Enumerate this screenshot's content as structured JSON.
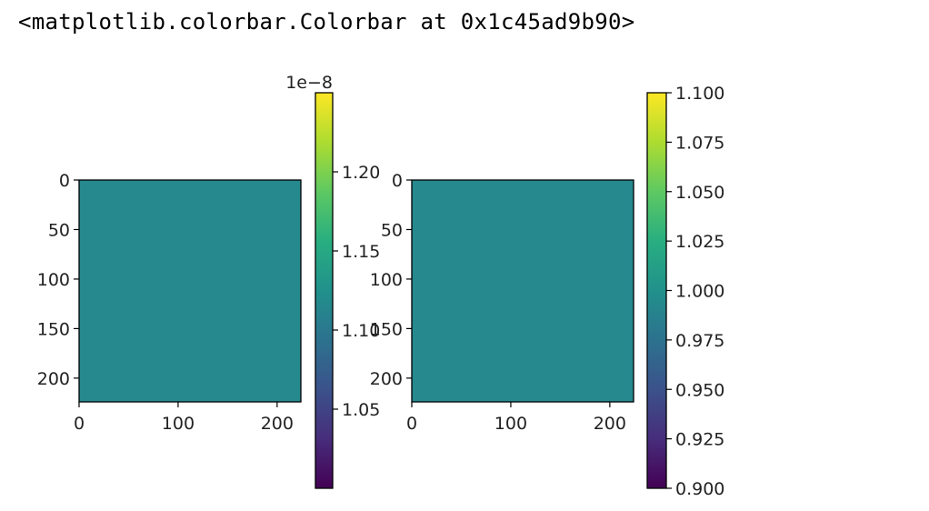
{
  "output": {
    "repr_text": "<matplotlib.colorbar.Colorbar at 0x1c45ad9b90>"
  },
  "colors": {
    "image_fill": "#26898e",
    "axis": "#000000",
    "viridis": [
      "#440154",
      "#472d7b",
      "#3b528b",
      "#2c728e",
      "#21918c",
      "#28ae80",
      "#5ec962",
      "#addc30",
      "#fde725"
    ]
  },
  "chart_data": [
    {
      "type": "heatmap",
      "title": "",
      "xlabel": "",
      "ylabel": "",
      "xlim": [
        0,
        224
      ],
      "ylim": [
        224,
        0
      ],
      "x_ticks": [
        0,
        100,
        200
      ],
      "x_tick_labels": [
        "0",
        "100",
        "200"
      ],
      "y_ticks": [
        0,
        50,
        100,
        150,
        200
      ],
      "y_tick_labels": [
        "0",
        "50",
        "100",
        "150",
        "200"
      ],
      "image_shape": [
        224,
        224
      ],
      "image_value": "constant (uniform colour)",
      "colorbar": {
        "range": [
          1.0,
          1.25
        ],
        "offset_label": "1e−8",
        "ticks": [
          1.05,
          1.1,
          1.15,
          1.2
        ],
        "tick_labels": [
          "1.05",
          "1.10",
          "1.15",
          "1.20"
        ],
        "colormap": "viridis"
      }
    },
    {
      "type": "heatmap",
      "title": "",
      "xlabel": "",
      "ylabel": "",
      "xlim": [
        0,
        224
      ],
      "ylim": [
        224,
        0
      ],
      "x_ticks": [
        0,
        100,
        200
      ],
      "x_tick_labels": [
        "0",
        "100",
        "200"
      ],
      "y_ticks": [
        0,
        50,
        100,
        150,
        200
      ],
      "y_tick_labels": [
        "0",
        "50",
        "100",
        "150",
        "200"
      ],
      "image_shape": [
        224,
        224
      ],
      "image_value": 1.0,
      "colorbar": {
        "range": [
          0.9,
          1.1
        ],
        "offset_label": "",
        "ticks": [
          0.9,
          0.925,
          0.95,
          0.975,
          1.0,
          1.025,
          1.05,
          1.075,
          1.1
        ],
        "tick_labels": [
          "0.900",
          "0.925",
          "0.950",
          "0.975",
          "1.000",
          "1.025",
          "1.050",
          "1.075",
          "1.100"
        ],
        "colormap": "viridis"
      }
    }
  ]
}
